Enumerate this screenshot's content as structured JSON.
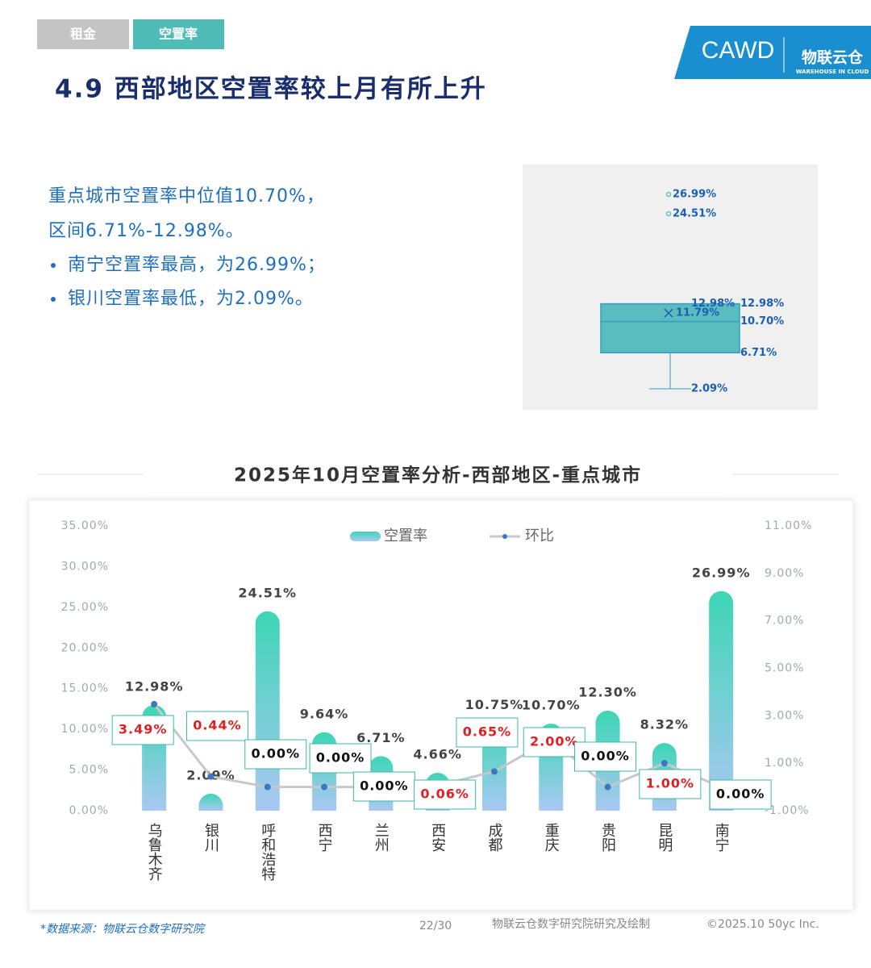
{
  "header": {
    "tabs": [
      "租金",
      "空置率"
    ],
    "title": "4.9 西部地区空置率较上月有所上升",
    "logo": {
      "brand": "CAWD",
      "name": "物联云仓",
      "tagline": "WAREHOUSE IN CLOUD"
    }
  },
  "summary": {
    "lines": [
      "重点城市空置率中位值10.70%，",
      "区间6.71%-12.98%。"
    ],
    "bullets": [
      "南宁空置率最高，为26.99%；",
      "银川空置率最低，为2.09%。"
    ]
  },
  "chart_data": [
    {
      "type": "box",
      "min": 2.09,
      "q1": 6.71,
      "median": 10.7,
      "q3": 12.98,
      "max": 12.98,
      "mean": 11.79,
      "outliers": [
        26.99,
        24.51
      ],
      "color": "#5bbcc0",
      "value_labels": {
        "min": "2.09%",
        "q1": "6.71%",
        "median": "10.70%",
        "q3": "12.98%",
        "max": "12.98%",
        "mean": "11.79%",
        "outliers": [
          "26.99%",
          "24.51%"
        ]
      }
    },
    {
      "type": "bar",
      "title": "2025年10月空置率分析-西部地区-重点城市",
      "categories": [
        "乌鲁木齐",
        "银川",
        "呼和浩特",
        "西宁",
        "兰州",
        "西安",
        "成都",
        "重庆",
        "贵阳",
        "昆明",
        "南宁"
      ],
      "series": [
        {
          "name": "空置率",
          "type": "bar",
          "color": "#3dd6b5",
          "color_end": "#aac8f2",
          "values": [
            12.98,
            2.09,
            24.51,
            9.64,
            6.71,
            4.66,
            10.75,
            10.7,
            12.3,
            8.32,
            26.99
          ],
          "value_labels": [
            "12.98%",
            "2.09%",
            "24.51%",
            "9.64%",
            "6.71%",
            "4.66%",
            "10.75%",
            "10.70%",
            "12.30%",
            "8.32%",
            "26.99%"
          ]
        },
        {
          "name": "环比",
          "type": "line",
          "axis": "y2",
          "color": "#c8c8c8",
          "marker_color": "#3a78c0",
          "values": [
            3.49,
            0.44,
            0,
            0,
            0,
            0.06,
            0.65,
            2,
            0,
            1,
            0
          ],
          "value_labels": [
            "3.49%",
            "0.44%",
            "0.00%",
            "0.00%",
            "0.00%",
            "0.06%",
            "0.65%",
            "2.00%",
            "0.00%",
            "1.00%",
            "0.00%"
          ]
        }
      ],
      "ylim": [
        0,
        35
      ],
      "yticks": [
        {
          "value": 0,
          "label": "0.00%"
        },
        {
          "value": 5,
          "label": "5.00%"
        },
        {
          "value": 10,
          "label": "10.00%"
        },
        {
          "value": 15,
          "label": "15.00%"
        },
        {
          "value": 20,
          "label": "20.00%"
        },
        {
          "value": 25,
          "label": "25.00%"
        },
        {
          "value": 30,
          "label": "30.00%"
        },
        {
          "value": 35,
          "label": "35.00%"
        }
      ],
      "y2lim": [
        -1,
        11
      ],
      "y2ticks": [
        {
          "value": -1,
          "label": "-1.00%"
        },
        {
          "value": 1,
          "label": "1.00%"
        },
        {
          "value": 3,
          "label": "3.00%"
        },
        {
          "value": 5,
          "label": "5.00%"
        },
        {
          "value": 7,
          "label": "7.00%"
        },
        {
          "value": 9,
          "label": "9.00%"
        },
        {
          "value": 11,
          "label": "11.00%"
        }
      ]
    }
  ],
  "footer": {
    "source": "*数据来源：物联云仓数字研究院",
    "page": "22/30",
    "credit": "物联云仓数字研究院研究及绘制",
    "copyright": "©2025.10 50yc Inc."
  }
}
